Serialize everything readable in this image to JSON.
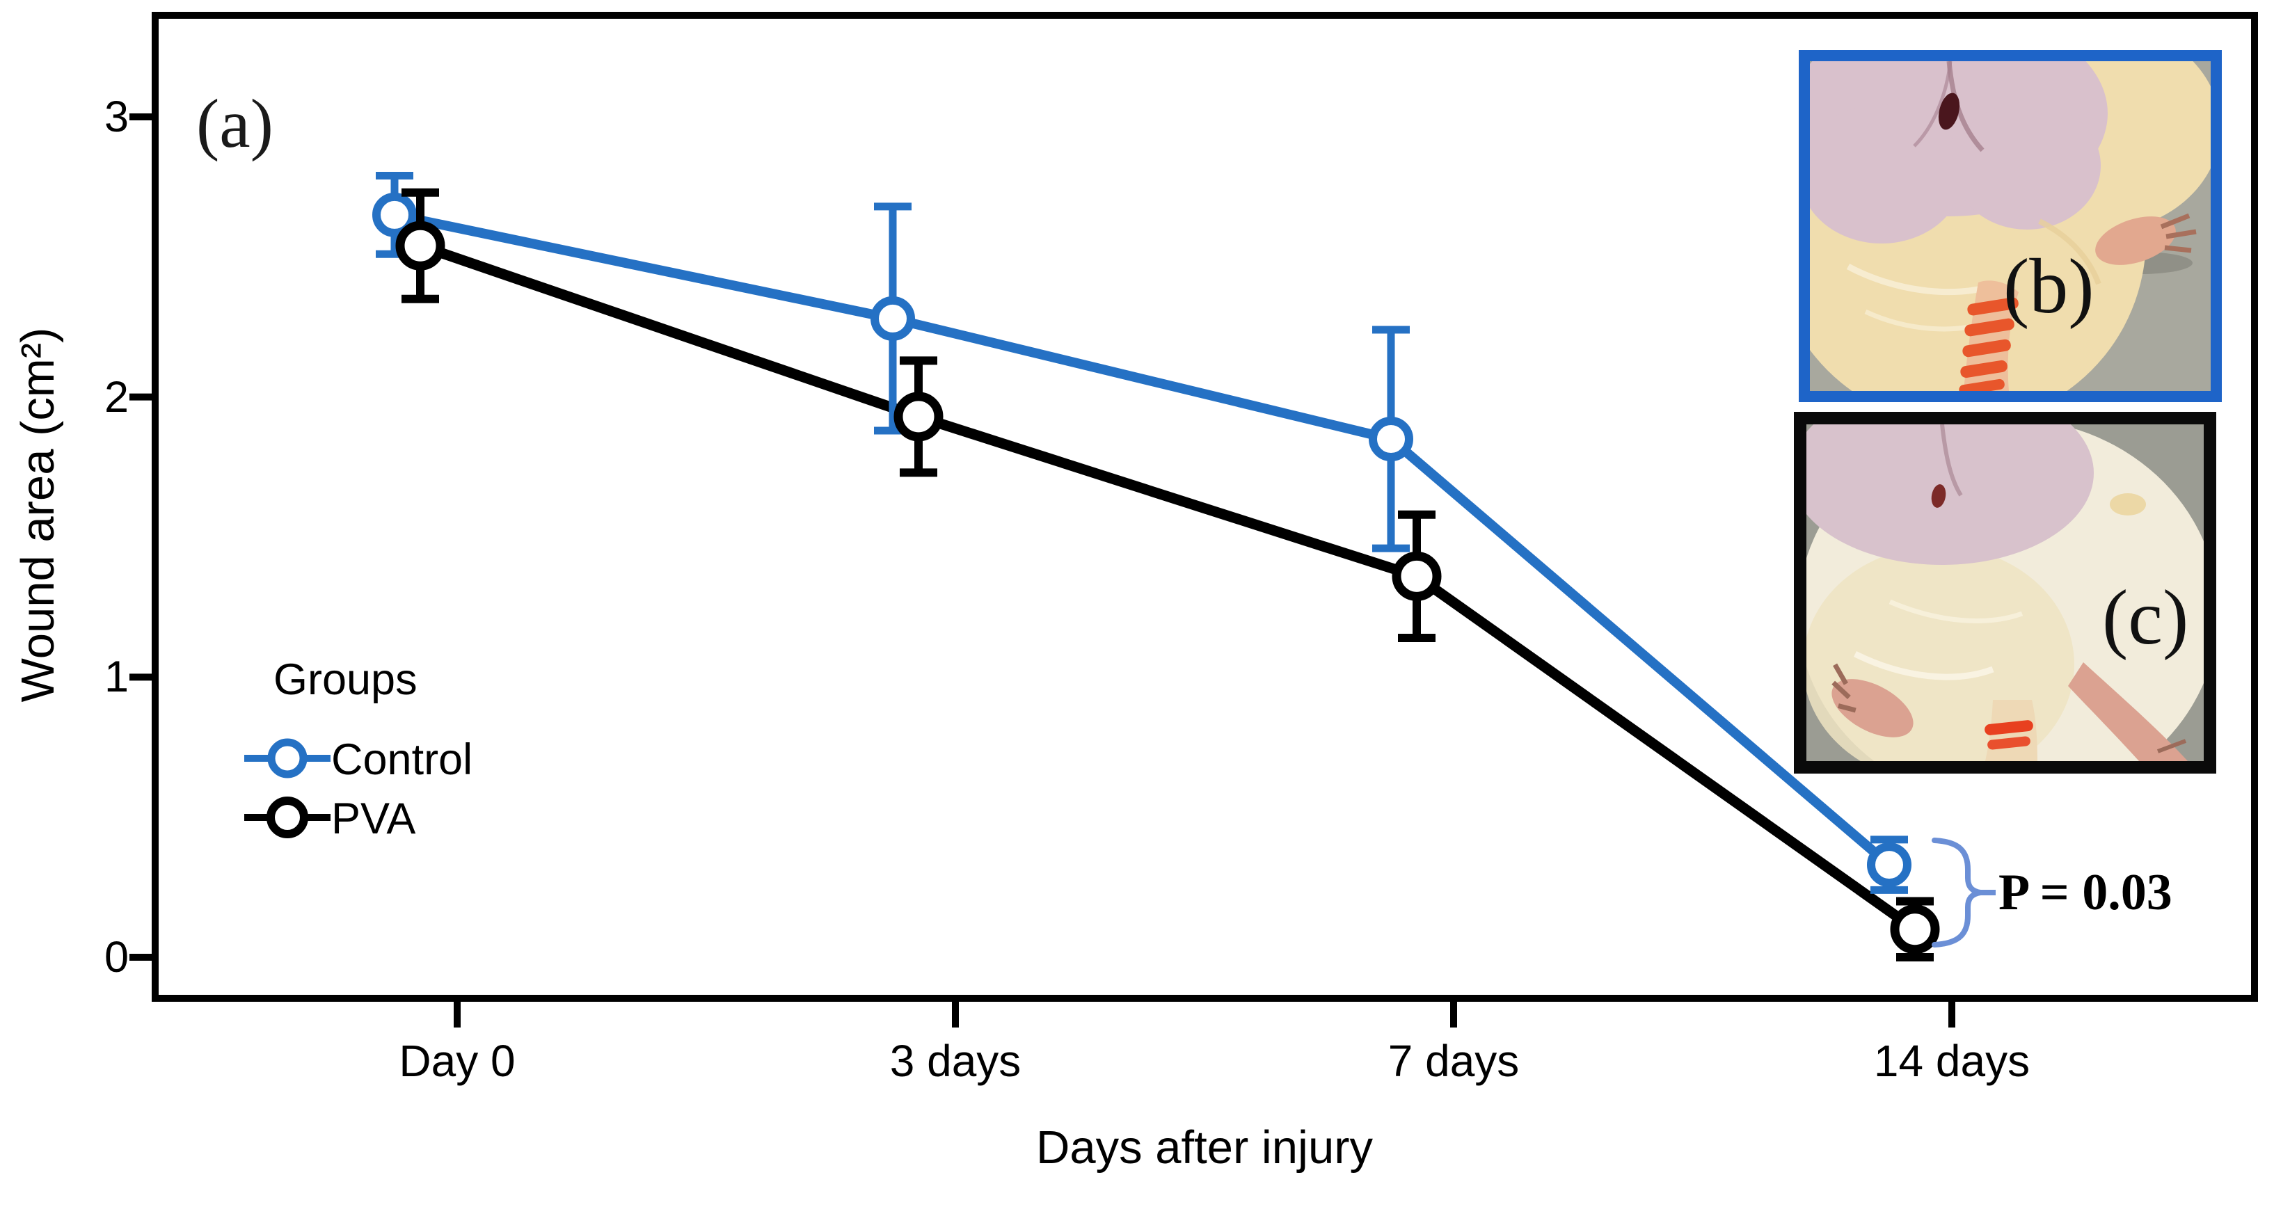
{
  "figure": {
    "panel_label": "(a)",
    "background": "#ffffff"
  },
  "chart_data": {
    "type": "line",
    "title": "",
    "xlabel": "Days after injury",
    "ylabel": "Wound area (cm²)",
    "categories": [
      "Day 0",
      "3 days",
      "7 days",
      "14 days"
    ],
    "y_ticks": [
      "0",
      "1",
      "2",
      "3"
    ],
    "ylim": [
      -0.15,
      3.35
    ],
    "grid": false,
    "legend": {
      "title": "Groups",
      "position": "inside-left-middle",
      "items": [
        "Control",
        "PVA"
      ]
    },
    "series": [
      {
        "name": "Control",
        "color": "#2571c4",
        "marker": "open-circle",
        "values": [
          2.65,
          2.28,
          1.85,
          0.33
        ],
        "errors": [
          0.14,
          0.4,
          0.39,
          0.09
        ]
      },
      {
        "name": "PVA",
        "color": "#000000",
        "marker": "open-circle",
        "values": [
          2.54,
          1.93,
          1.36,
          0.1
        ],
        "errors": [
          0.19,
          0.2,
          0.22,
          0.1
        ]
      }
    ],
    "annotation": {
      "text": "P = 0.03",
      "at_category": "14 days",
      "compares": [
        "Control",
        "PVA"
      ],
      "brace_color": "#6b8fd6",
      "text_color": "#000000"
    }
  },
  "insets": [
    {
      "label": "(b)",
      "border_color": "#1e64c8",
      "palette": {
        "bg": "#a8a89e",
        "fur": "#f0ddae",
        "skin": "#d9c1cc",
        "wound": "#4a161d",
        "paw": "#e2a88f",
        "tail": "#eebf9b",
        "stripe": "#e8562b"
      }
    },
    {
      "label": "(c)",
      "border_color": "#0a0a0a",
      "palette": {
        "bg": "#9b9c93",
        "fur": "#f2ecdb",
        "fur2": "#efe4c2",
        "skin": "#d8c2cc",
        "wound": "#7c2a28",
        "paw": "#dba291",
        "leg": "#eed9b6",
        "band": "#e8401f"
      }
    }
  ]
}
